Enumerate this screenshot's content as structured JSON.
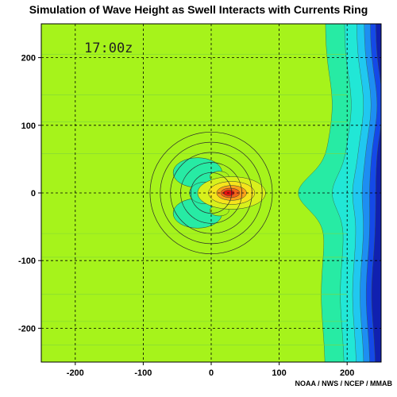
{
  "header": {
    "title": "Simulation of Wave Height as Swell Interacts with Currents Ring",
    "credit": "NOAA / NWS / NCEP / MMAB"
  },
  "chart_data": {
    "type": "heatmap",
    "title": "Simulation of Wave Height as Swell Interacts with Currents Ring",
    "time_stamp": "17:00z",
    "xlim": [
      -250,
      250
    ],
    "ylim": [
      -250,
      250
    ],
    "x_ticks": [
      -200,
      -100,
      0,
      100,
      200
    ],
    "y_ticks": [
      -200,
      -100,
      0,
      100,
      200
    ],
    "x_tick_labels": [
      "-200",
      "-100",
      "0",
      "100",
      "200"
    ],
    "y_tick_labels": [
      "-200",
      "-100",
      "0",
      "100",
      "200"
    ],
    "grid": true,
    "grid_style": "dashed",
    "current_ring": {
      "center": [
        0,
        0
      ],
      "radii": [
        30,
        45,
        60,
        75,
        90
      ]
    },
    "field_levels": [
      {
        "level": "background",
        "color": "#a6f31b"
      },
      {
        "level": "low-1",
        "color": "#27eba4"
      },
      {
        "level": "low-2",
        "color": "#21e7d6"
      },
      {
        "level": "low-3",
        "color": "#20c8f0"
      },
      {
        "level": "low-4",
        "color": "#1d8ef2"
      },
      {
        "level": "low-5",
        "color": "#1449e8"
      },
      {
        "level": "low-6",
        "color": "#1020b0"
      },
      {
        "level": "high-1",
        "color": "#d8f01c"
      },
      {
        "level": "high-2",
        "color": "#f6e41c"
      },
      {
        "level": "high-3",
        "color": "#f9a01a"
      },
      {
        "level": "high-4",
        "color": "#f46118"
      },
      {
        "level": "max",
        "color": "#e81010"
      }
    ]
  }
}
